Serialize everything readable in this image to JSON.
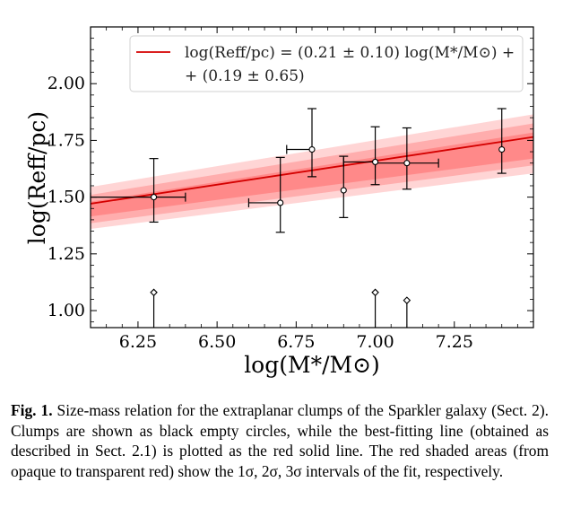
{
  "chart_data": {
    "type": "scatter",
    "xlabel": "log(M*/M⊙)",
    "ylabel": "log(Reff/pc)",
    "xlim": [
      6.1,
      7.5
    ],
    "ylim": [
      0.925,
      2.25
    ],
    "xticks": [
      6.25,
      6.5,
      6.75,
      7.0,
      7.25
    ],
    "xtick_labels": [
      "6.25",
      "6.50",
      "6.75",
      "7.00",
      "7.25"
    ],
    "yticks": [
      1.0,
      1.25,
      1.5,
      1.75,
      2.0
    ],
    "ytick_labels": [
      "1.00",
      "1.25",
      "1.50",
      "1.75",
      "2.00"
    ],
    "legend": {
      "position": "top-right",
      "line1": "log(Reff/pc) = (0.21 ± 0.10) log(M*/M⊙) +",
      "line2": "+ (0.19 ± 0.65)"
    },
    "fit": {
      "slope": 0.21,
      "intercept": 0.19,
      "color": "#d40000"
    },
    "bands": [
      {
        "level": "3σ",
        "x": [
          6.1,
          7.5
        ],
        "lower": [
          1.36,
          1.605
        ],
        "upper": [
          1.545,
          1.865
        ],
        "color": "#ffb3b3",
        "opacity": 0.55
      },
      {
        "level": "2σ",
        "x": [
          6.1,
          7.5
        ],
        "lower": [
          1.385,
          1.64
        ],
        "upper": [
          1.51,
          1.825
        ],
        "color": "#ff8c8c",
        "opacity": 0.55
      },
      {
        "level": "1σ",
        "x": [
          6.1,
          7.5
        ],
        "lower": [
          1.415,
          1.67
        ],
        "upper": [
          1.48,
          1.785
        ],
        "color": "#ff6b6b",
        "opacity": 0.55
      }
    ],
    "points": [
      {
        "x": 6.3,
        "y": 1.5,
        "xerr": [
          0.2,
          0.1
        ],
        "yerr": [
          0.11,
          0.17
        ]
      },
      {
        "x": 6.7,
        "y": 1.475,
        "xerr": [
          0.1,
          0.0
        ],
        "yerr": [
          0.13,
          0.2
        ]
      },
      {
        "x": 6.8,
        "y": 1.71,
        "xerr": [
          0.08,
          0.0
        ],
        "yerr": [
          0.12,
          0.18
        ]
      },
      {
        "x": 6.9,
        "y": 1.53,
        "xerr": [
          0.0,
          0.0
        ],
        "yerr": [
          0.12,
          0.15
        ]
      },
      {
        "x": 7.0,
        "y": 1.655,
        "xerr": [
          0.1,
          0.0
        ],
        "yerr": [
          0.1,
          0.155
        ]
      },
      {
        "x": 7.1,
        "y": 1.65,
        "xerr": [
          0.1,
          0.1
        ],
        "yerr": [
          0.115,
          0.155
        ]
      },
      {
        "x": 7.4,
        "y": 1.71,
        "xerr": [
          0.0,
          0.0
        ],
        "yerr": [
          0.105,
          0.18
        ]
      }
    ],
    "upper_limits": [
      {
        "x": 6.3,
        "y": 1.08
      },
      {
        "x": 7.0,
        "y": 1.08
      },
      {
        "x": 7.1,
        "y": 1.045
      }
    ]
  },
  "caption": {
    "label": "Fig. 1.",
    "text": " Size-mass relation for the extraplanar clumps of the Sparkler galaxy (Sect. 2). Clumps are shown as black empty circles, while the best-fitting line (obtained as described in Sect. 2.1) is plotted as the red solid line. The red shaded areas (from opaque to transparent red) show the 1σ, 2σ, 3σ intervals of the fit, respectively."
  }
}
